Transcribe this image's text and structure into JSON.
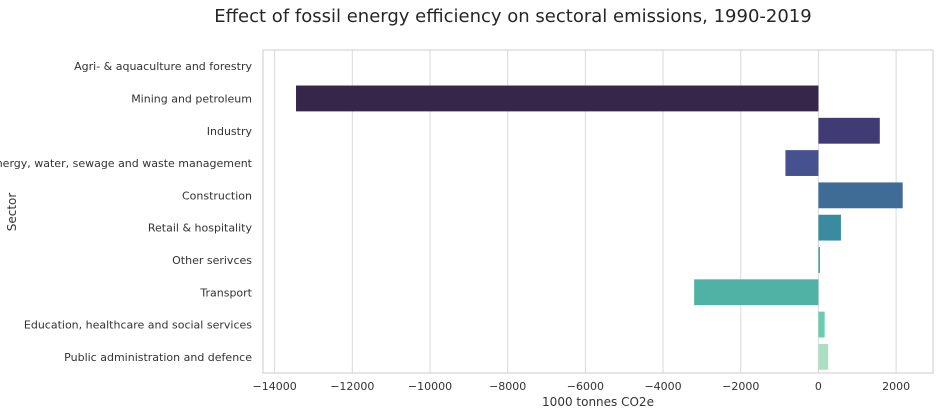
{
  "chart_data": {
    "type": "bar",
    "orientation": "horizontal",
    "title": "Effect of fossil energy efficiency on sectoral emissions, 1990-2019",
    "xlabel": "1000 tonnes CO2e",
    "ylabel": "Sector",
    "xlim": [
      -14300,
      2950
    ],
    "xticks": [
      -14000,
      -12000,
      -10000,
      -8000,
      -6000,
      -4000,
      -2000,
      0,
      2000
    ],
    "xtick_labels": [
      "−14000",
      "−12000",
      "−10000",
      "−8000",
      "−6000",
      "−4000",
      "−2000",
      "0",
      "2000"
    ],
    "grid": true,
    "categories": [
      "Agri- & aquaculture and forestry",
      "Mining and petroleum",
      "Industry",
      "Energy, water, sewage and waste management",
      "Construction",
      "Retail & hospitality",
      "Other serivces",
      "Transport",
      "Education, healthcare and social services",
      "Public administration and defence"
    ],
    "values": [
      0,
      -13450,
      1580,
      -850,
      2170,
      580,
      40,
      -3200,
      160,
      250
    ],
    "colors": [
      "#2a1a3e",
      "#35264a",
      "#403a75",
      "#46518f",
      "#3f6c96",
      "#3b8ba0",
      "#3fa3a7",
      "#50b2a5",
      "#68ccae",
      "#acdfc2"
    ]
  }
}
